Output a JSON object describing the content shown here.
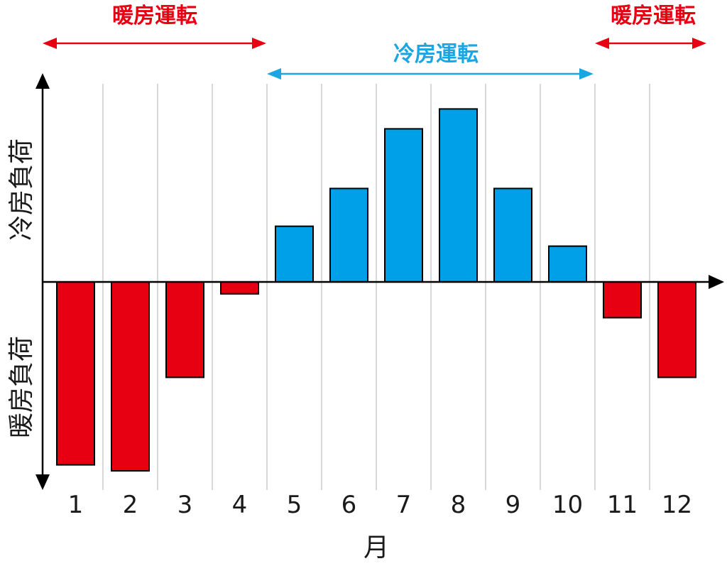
{
  "chart_data": {
    "type": "bar",
    "categories": [
      "1",
      "2",
      "3",
      "4",
      "5",
      "6",
      "7",
      "8",
      "9",
      "10",
      "11",
      "12"
    ],
    "values": [
      -92,
      -95,
      -48,
      -6,
      28,
      47,
      77,
      87,
      47,
      18,
      -18,
      -48
    ],
    "series": [
      {
        "values": [
          -92,
          -95,
          -48,
          -6,
          28,
          47,
          77,
          87,
          47,
          18,
          -18,
          -48
        ]
      }
    ],
    "xlabel": "月",
    "ylabel_positive": "冷房負荷",
    "ylabel_negative": "暖房負荷",
    "ylim": [
      -98,
      100
    ],
    "grid": true,
    "colors": {
      "heating": "#e60012",
      "cooling": "#00a0e9",
      "heating_arrow": "#e60012",
      "cooling_arrow": "#1aa5e3",
      "grid": "#b0b0b0",
      "axis": "#000000"
    },
    "annotations": [
      {
        "label": "暖房運転",
        "from_month": 1,
        "to_month": 4,
        "color": "#e60012"
      },
      {
        "label": "冷房運転",
        "from_month": 5,
        "to_month": 10,
        "color": "#1aa5e3"
      },
      {
        "label": "暖房運転",
        "from_month": 11,
        "to_month": 12,
        "color": "#e60012"
      }
    ]
  }
}
